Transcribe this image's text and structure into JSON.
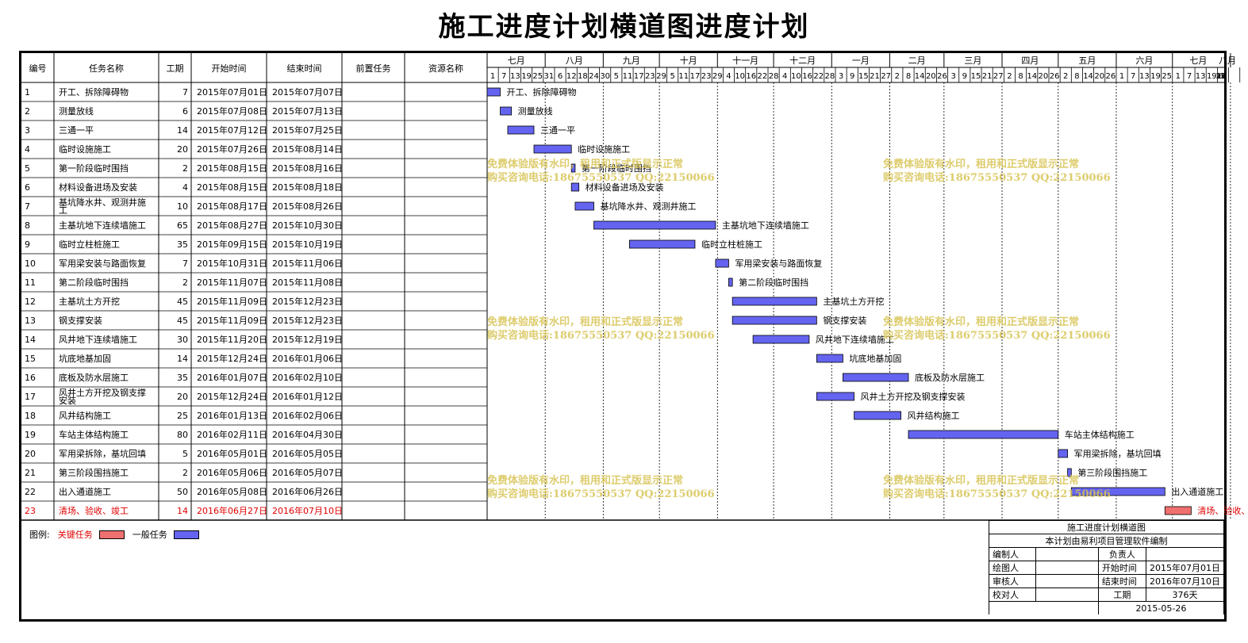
{
  "title": "施工进度计划横道图进度计划",
  "columns": {
    "id": "编号",
    "name": "任务名称",
    "duration": "工期",
    "start": "开始时间",
    "end": "结束时间",
    "predecessors": "前置任务",
    "resources": "资源名称"
  },
  "months": [
    "七月",
    "八月",
    "九月",
    "十月",
    "十一月",
    "十二月",
    "一月",
    "二月",
    "三月",
    "四月",
    "五月",
    "六月",
    "七月",
    "八月"
  ],
  "day_ticks": [
    "1",
    "7",
    "13",
    "19",
    "25",
    "31",
    "6",
    "12",
    "18",
    "24",
    "30",
    "5",
    "11",
    "17",
    "23",
    "29",
    "5",
    "11",
    "17",
    "23",
    "29",
    "4",
    "10",
    "16",
    "22",
    "28",
    "4",
    "10",
    "16",
    "22",
    "28",
    "3",
    "9",
    "15",
    "21",
    "27",
    "2",
    "8",
    "14",
    "20",
    "26",
    "3",
    "9",
    "15",
    "21",
    "27",
    "2",
    "8",
    "14",
    "20",
    "26",
    "2",
    "8",
    "14",
    "20",
    "26",
    "1",
    "7",
    "13",
    "19",
    "25",
    "1",
    "7",
    "13",
    "19",
    "25",
    "31",
    "6",
    "12",
    "18"
  ],
  "chart_data": {
    "type": "gantt",
    "x_start": "2015-07-01",
    "tasks": [
      {
        "id": "1",
        "name": "开工、拆除障碍物",
        "duration": "7",
        "start": "2015年07月01日",
        "end": "2015年07月07日",
        "critical": false
      },
      {
        "id": "2",
        "name": "测量放线",
        "duration": "6",
        "start": "2015年07月08日",
        "end": "2015年07月13日",
        "critical": false
      },
      {
        "id": "3",
        "name": "三通一平",
        "duration": "14",
        "start": "2015年07月12日",
        "end": "2015年07月25日",
        "critical": false
      },
      {
        "id": "4",
        "name": "临时设施施工",
        "duration": "20",
        "start": "2015年07月26日",
        "end": "2015年08月14日",
        "critical": false
      },
      {
        "id": "5",
        "name": "第一阶段临时围挡",
        "duration": "2",
        "start": "2015年08月15日",
        "end": "2015年08月16日",
        "critical": false
      },
      {
        "id": "6",
        "name": "材料设备进场及安装",
        "duration": "4",
        "start": "2015年08月15日",
        "end": "2015年08月18日",
        "critical": false
      },
      {
        "id": "7",
        "name": "基坑降水井、观测井施工",
        "duration": "10",
        "start": "2015年08月17日",
        "end": "2015年08月26日",
        "critical": false
      },
      {
        "id": "8",
        "name": "主基坑地下连续墙施工",
        "duration": "65",
        "start": "2015年08月27日",
        "end": "2015年10月30日",
        "critical": false
      },
      {
        "id": "9",
        "name": "临时立柱桩施工",
        "duration": "35",
        "start": "2015年09月15日",
        "end": "2015年10月19日",
        "critical": false
      },
      {
        "id": "10",
        "name": "军用梁安装与路面恢复",
        "duration": "7",
        "start": "2015年10月31日",
        "end": "2015年11月06日",
        "critical": false
      },
      {
        "id": "11",
        "name": "第二阶段临时围挡",
        "duration": "2",
        "start": "2015年11月07日",
        "end": "2015年11月08日",
        "critical": false
      },
      {
        "id": "12",
        "name": "主基坑土方开挖",
        "duration": "45",
        "start": "2015年11月09日",
        "end": "2015年12月23日",
        "critical": false
      },
      {
        "id": "13",
        "name": "钢支撑安装",
        "duration": "45",
        "start": "2015年11月09日",
        "end": "2015年12月23日",
        "critical": false
      },
      {
        "id": "14",
        "name": "风井地下连续墙施工",
        "duration": "30",
        "start": "2015年11月20日",
        "end": "2015年12月19日",
        "critical": false
      },
      {
        "id": "15",
        "name": "坑底地基加固",
        "duration": "14",
        "start": "2015年12月24日",
        "end": "2016年01月06日",
        "critical": false
      },
      {
        "id": "16",
        "name": "底板及防水层施工",
        "duration": "35",
        "start": "2016年01月07日",
        "end": "2016年02月10日",
        "critical": false
      },
      {
        "id": "17",
        "name": "风井土方开挖及钢支撑安装",
        "duration": "20",
        "start": "2015年12月24日",
        "end": "2016年01月12日",
        "critical": false
      },
      {
        "id": "18",
        "name": "风井结构施工",
        "duration": "25",
        "start": "2016年01月13日",
        "end": "2016年02月06日",
        "critical": false
      },
      {
        "id": "19",
        "name": "车站主体结构施工",
        "duration": "80",
        "start": "2016年02月11日",
        "end": "2016年04月30日",
        "critical": false
      },
      {
        "id": "20",
        "name": "军用梁拆除，基坑回填",
        "duration": "5",
        "start": "2016年05月01日",
        "end": "2016年05月05日",
        "critical": false
      },
      {
        "id": "21",
        "name": "第三阶段围挡施工",
        "duration": "2",
        "start": "2016年05月06日",
        "end": "2016年05月07日",
        "critical": false
      },
      {
        "id": "22",
        "name": "出入通道施工",
        "duration": "50",
        "start": "2016年05月08日",
        "end": "2016年06月26日",
        "critical": false
      },
      {
        "id": "23",
        "name": "清场、验收、竣工",
        "duration": "14",
        "start": "2016年06月27日",
        "end": "2016年07月10日",
        "critical": true
      }
    ]
  },
  "legend": {
    "label": "图例:",
    "critical": "关键任务",
    "normal": "一般任务"
  },
  "colors": {
    "normal_bar": "#6464f0",
    "critical_bar": "#f07070",
    "critical_text": "#e00000",
    "watermark": "#d8c454"
  },
  "watermark": {
    "line1": "免费体验版有水印，租用和正式版显示正常",
    "line2": "购买咨询电话:18675550537 QQ:22150066"
  },
  "title_block": {
    "title": "施工进度计划横道图",
    "subtitle": "本计划由易利项目管理软件编制",
    "compiler_label": "编制人",
    "responsible_label": "负责人",
    "drawer_label": "绘图人",
    "start_label": "开始时间",
    "start_value": "2015年07月01日",
    "reviewer_label": "审核人",
    "end_label": "结束时间",
    "end_value": "2016年07月10日",
    "checker_label": "校对人",
    "duration_label": "工期",
    "duration_value": "376天",
    "date": "2015-05-26"
  }
}
